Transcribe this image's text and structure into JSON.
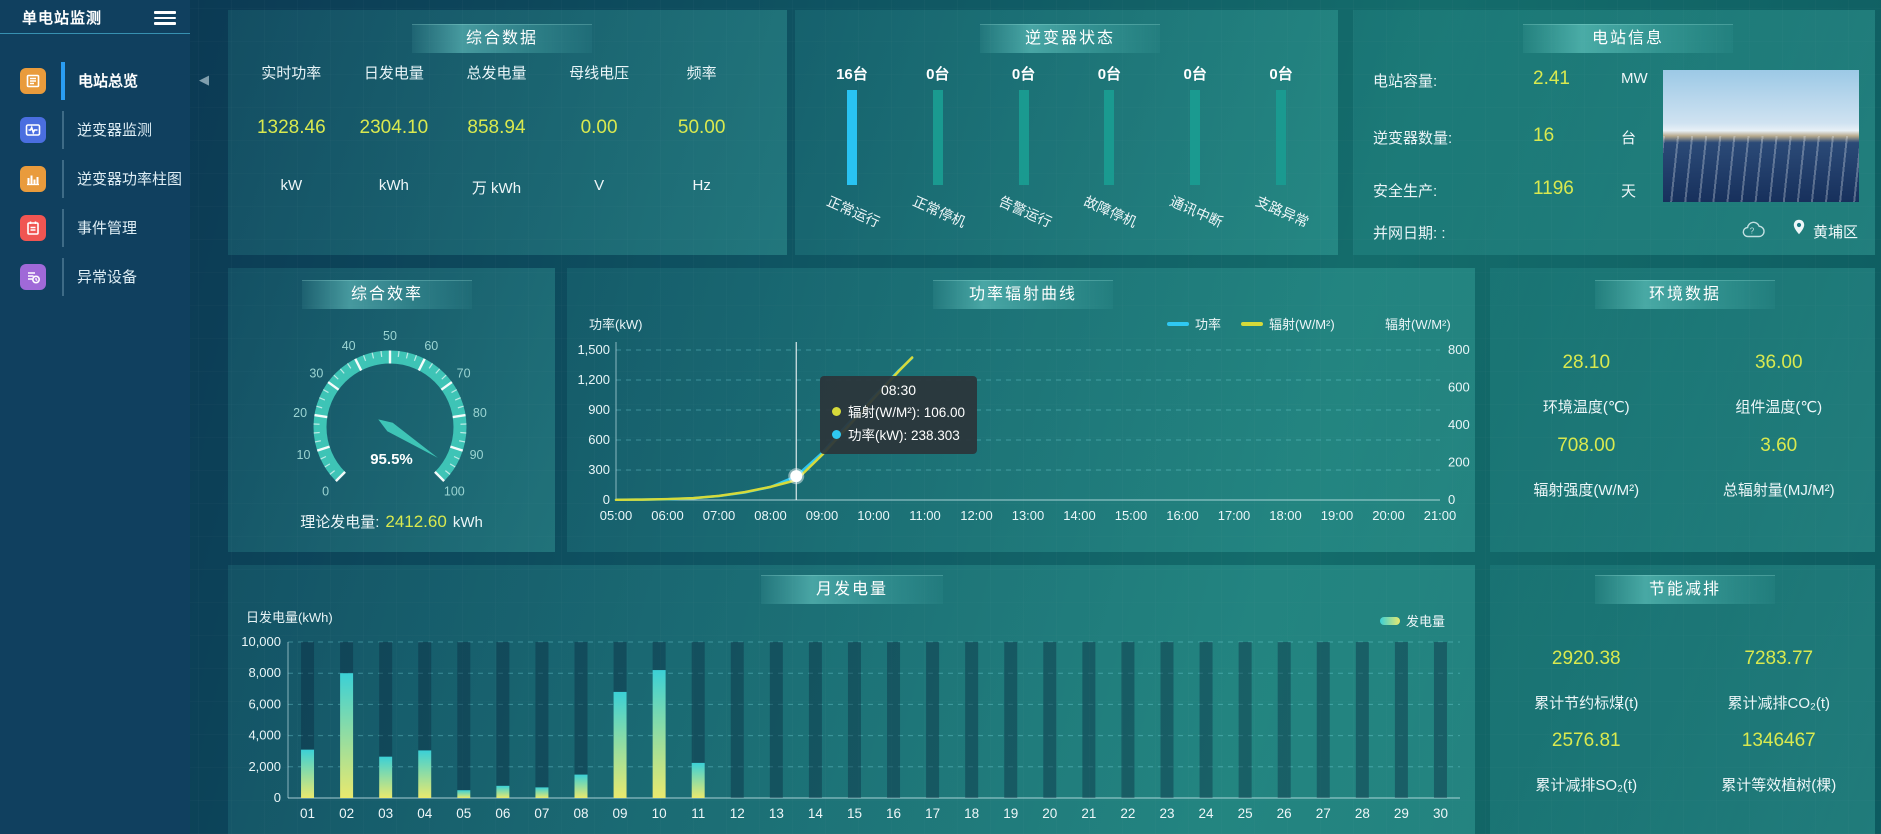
{
  "app": {
    "title": "单电站监测"
  },
  "sidebar": {
    "items": [
      {
        "label": "电站总览",
        "color": "#e99b3c",
        "active": true
      },
      {
        "label": "逆变器监测",
        "color": "#4a6ee0",
        "active": false
      },
      {
        "label": "逆变器功率柱图",
        "color": "#e99b3c",
        "active": false
      },
      {
        "label": "事件管理",
        "color": "#f05552",
        "active": false
      },
      {
        "label": "异常设备",
        "color": "#a069d8",
        "active": false
      }
    ]
  },
  "colors": {
    "value_yellow": "#d9e94f",
    "inv_highlight": "#29c3f2",
    "inv_normal": "#1a9a90",
    "gauge": "#3ec4b6",
    "active_menu": "#2a9df2"
  },
  "panels": {
    "summary": {
      "title": "综合数据",
      "metrics": [
        {
          "label": "实时功率",
          "value": "1328.46",
          "unit": "kW"
        },
        {
          "label": "日发电量",
          "value": "2304.10",
          "unit": "kWh"
        },
        {
          "label": "总发电量",
          "value": "858.94",
          "unit": "万 kWh"
        },
        {
          "label": "母线电压",
          "value": "0.00",
          "unit": "V"
        },
        {
          "label": "频率",
          "value": "50.00",
          "unit": "Hz"
        }
      ]
    },
    "inverter_status": {
      "title": "逆变器状态",
      "bars": [
        {
          "count": "16台",
          "label": "正常运行",
          "highlight": true
        },
        {
          "count": "0台",
          "label": "正常停机",
          "highlight": false
        },
        {
          "count": "0台",
          "label": "告警运行",
          "highlight": false
        },
        {
          "count": "0台",
          "label": "故障停机",
          "highlight": false
        },
        {
          "count": "0台",
          "label": "通讯中断",
          "highlight": false
        },
        {
          "count": "0台",
          "label": "支路异常",
          "highlight": false
        }
      ]
    },
    "station_info": {
      "title": "电站信息",
      "rows": [
        {
          "label": "电站容量:",
          "value": "2.41",
          "unit": "MW"
        },
        {
          "label": "逆变器数量:",
          "value": "16",
          "unit": "台"
        },
        {
          "label": "安全生产:",
          "value": "1196",
          "unit": "天"
        },
        {
          "label": "并网日期: :",
          "value": "",
          "unit": ""
        }
      ],
      "location": "黄埔区"
    },
    "efficiency": {
      "title": "综合效率",
      "gauge_label": "95.5%",
      "theory_label": "理论发电量:",
      "theory_value": "2412.60",
      "theory_unit": "kWh"
    },
    "environment": {
      "title": "环境数据",
      "metrics": [
        {
          "value": "28.10",
          "label": "环境温度(℃)"
        },
        {
          "value": "36.00",
          "label": "组件温度(℃)"
        },
        {
          "value": "708.00",
          "label": "辐射强度(W/M²)"
        },
        {
          "value": "3.60",
          "label": "总辐射量(MJ/M²)"
        }
      ]
    },
    "savings": {
      "title": "节能减排",
      "metrics": [
        {
          "value": "2920.38",
          "label": "累计节约标煤(t)"
        },
        {
          "value": "7283.77",
          "label": "累计减排CO₂(t)"
        },
        {
          "value": "2576.81",
          "label": "累计减排SO₂(t)"
        },
        {
          "value": "1346467",
          "label": "累计等效植树(棵)"
        }
      ]
    }
  },
  "chart_data": [
    {
      "type": "gauge",
      "title": "综合效率",
      "value": 95.5,
      "min": 0,
      "max": 100,
      "tick_step": 10,
      "color": "#3ec4b6",
      "center_label": "95.5%"
    },
    {
      "type": "line",
      "title": "功率辐射曲线",
      "x_range": [
        5,
        21
      ],
      "x_axis_labels": [
        "05:00",
        "06:00",
        "07:00",
        "08:00",
        "09:00",
        "10:00",
        "11:00",
        "12:00",
        "13:00",
        "14:00",
        "15:00",
        "16:00",
        "17:00",
        "18:00",
        "19:00",
        "20:00",
        "21:00"
      ],
      "x_hours": [
        5,
        5.5,
        6,
        6.5,
        7,
        7.5,
        8,
        8.5,
        9,
        9.5,
        10,
        10.5,
        10.75
      ],
      "series": [
        {
          "name": "功率",
          "axis": "left",
          "color": "#2fc8f2",
          "values": [
            2,
            4,
            8,
            18,
            40,
            75,
            130,
            238.303,
            470,
            760,
            1030,
            1300,
            1420
          ]
        },
        {
          "name": "辐射(W/M²)",
          "axis": "right",
          "color": "#d6da3a",
          "values": [
            1,
            2,
            5,
            10,
            22,
            42,
            70,
            106,
            240,
            390,
            540,
            690,
            760
          ]
        }
      ],
      "y_left": {
        "label": "功率(kW)",
        "min": 0,
        "max": 1500,
        "ticks": [
          0,
          300,
          600,
          900,
          1200,
          1500
        ]
      },
      "y_right": {
        "label": "辐射(W/M²)",
        "min": 0,
        "max": 800,
        "ticks": [
          0,
          200,
          400,
          600,
          800
        ]
      },
      "hover": {
        "x_hour": 8.5,
        "power": 238.303,
        "radiation": 106
      },
      "tooltip": {
        "time": "08:30",
        "rows": [
          {
            "text": "辐射(W/M²): 106.00",
            "color": "#d6da3a"
          },
          {
            "text": "功率(kW): 238.303",
            "color": "#2fc8f2"
          }
        ]
      },
      "legend_position": "top-right",
      "grid": true
    },
    {
      "type": "bar",
      "title": "月发电量",
      "ylabel": "日发电量(kWh)",
      "legend": "发电量",
      "ylim": [
        0,
        10000
      ],
      "y_ticks": [
        0,
        2000,
        4000,
        6000,
        8000,
        10000
      ],
      "bar_gradient": [
        "#3bd0d6",
        "#e9e96e"
      ],
      "categories": [
        "01",
        "02",
        "03",
        "04",
        "05",
        "06",
        "07",
        "08",
        "09",
        "10",
        "11",
        "12",
        "13",
        "14",
        "15",
        "16",
        "17",
        "18",
        "19",
        "20",
        "21",
        "22",
        "23",
        "24",
        "25",
        "26",
        "27",
        "28",
        "29",
        "30"
      ],
      "values": [
        3100,
        8000,
        2650,
        3050,
        500,
        780,
        680,
        1500,
        6800,
        8200,
        2250,
        0,
        0,
        0,
        0,
        0,
        0,
        0,
        0,
        0,
        0,
        0,
        0,
        0,
        0,
        0,
        0,
        0,
        0,
        0
      ]
    }
  ]
}
